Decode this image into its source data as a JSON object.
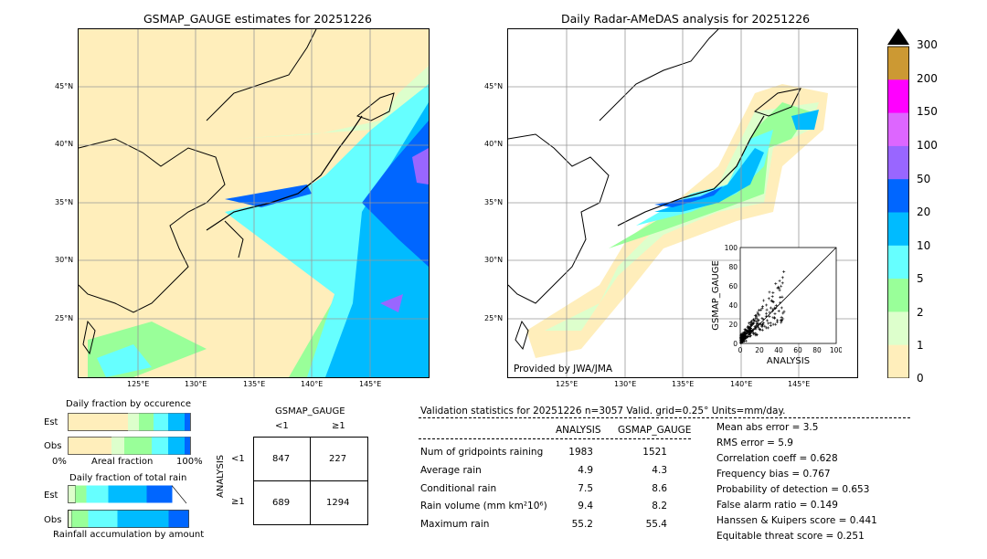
{
  "left_map": {
    "title": "GSMAP_GAUGE estimates for 20251226",
    "lat_ticks": [
      "45°N",
      "40°N",
      "35°N",
      "30°N",
      "25°N"
    ],
    "lon_ticks": [
      "125°E",
      "130°E",
      "135°E",
      "140°E",
      "145°E"
    ]
  },
  "right_map": {
    "title": "Daily Radar-AMeDAS analysis for 20251226",
    "lat_ticks": [
      "45°N",
      "40°N",
      "35°N",
      "30°N",
      "25°N"
    ],
    "lon_ticks": [
      "125°E",
      "130°E",
      "135°E",
      "140°E",
      "145°E"
    ],
    "credit": "Provided by JWA/JMA"
  },
  "colorbar": {
    "labels": [
      "300",
      "200",
      "150",
      "100",
      "50",
      "20",
      "10",
      "5",
      "2",
      "1",
      "0"
    ],
    "colors": [
      "#cc9933",
      "#ff00ff",
      "#dd66ff",
      "#9966ff",
      "#0066ff",
      "#00bbff",
      "#66ffff",
      "#99ff99",
      "#ddffcc",
      "#ffeebb"
    ]
  },
  "chart_data": [
    {
      "type": "scatter",
      "xlabel": "ANALYSIS",
      "ylabel": "GSMAP_GAUGE",
      "xlim": [
        0,
        100
      ],
      "ylim": [
        0,
        100
      ],
      "x_ticks": [
        "0",
        "20",
        "40",
        "60",
        "80",
        "100"
      ],
      "y_ticks": [
        "0",
        "20",
        "40",
        "60",
        "80",
        "100"
      ]
    },
    {
      "type": "bar",
      "title": "Daily fraction by occurence",
      "categories": [
        "Est",
        "Obs"
      ],
      "axis": [
        "0%",
        "Areal fraction",
        "100%"
      ]
    },
    {
      "type": "bar",
      "title": "Daily fraction of total rain",
      "categories": [
        "Est",
        "Obs"
      ],
      "footer": "Rainfall accumulation by amount"
    }
  ],
  "contingency": {
    "header": "GSMAP_GAUGE",
    "col1": "<1",
    "col2": "≥1",
    "row_axis": "ANALYSIS",
    "row1": "<1",
    "row2": "≥1",
    "cells": [
      "847",
      "227",
      "689",
      "1294"
    ]
  },
  "stats": {
    "header": "Validation statistics for 20251226  n=3057 Valid. grid=0.25° Units=mm/day.",
    "col_analysis": "ANALYSIS",
    "col_gsmap": "GSMAP_GAUGE",
    "rows": [
      {
        "label": "Num of gridpoints raining",
        "a": "1983",
        "g": "1521"
      },
      {
        "label": "Average rain",
        "a": "4.9",
        "g": "4.3"
      },
      {
        "label": "Conditional rain",
        "a": "7.5",
        "g": "8.6"
      },
      {
        "label": "Rain volume (mm km²10⁶)",
        "a": "9.4",
        "g": "8.2"
      },
      {
        "label": "Maximum rain",
        "a": "55.2",
        "g": "55.4"
      }
    ],
    "scores": [
      "Mean abs error =    3.5",
      "RMS error =    5.9",
      "Correlation coeff =  0.628",
      "Frequency bias =  0.767",
      "Probability of detection =  0.653",
      "False alarm ratio =  0.149",
      "Hanssen & Kuipers score =  0.441",
      "Equitable threat score =  0.251"
    ]
  }
}
